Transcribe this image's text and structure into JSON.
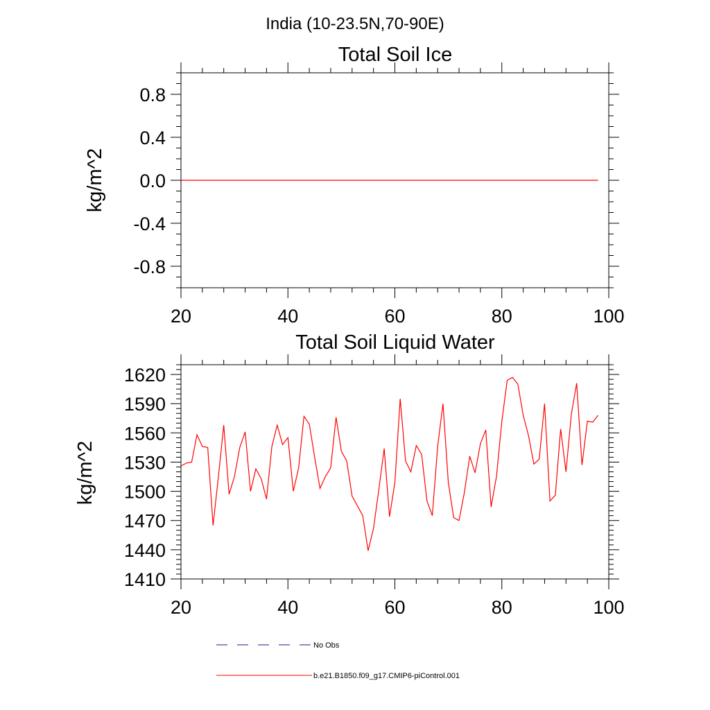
{
  "figure_title": "India (10-23.5N,70-90E)",
  "chart_data": [
    {
      "type": "line",
      "title": "Total Soil Ice",
      "xlabel": "",
      "ylabel": "kg/m^2",
      "xlim": [
        20,
        100
      ],
      "ylim": [
        -1.0,
        1.0
      ],
      "x_ticks": [
        20,
        40,
        60,
        80,
        100
      ],
      "y_ticks": [
        -0.8,
        -0.4,
        0.0,
        0.4,
        0.8
      ],
      "y_tick_labels": [
        "-0.8",
        "-0.4",
        "0.0",
        "0.4",
        "0.8"
      ],
      "series": [
        {
          "name": "b.e21.B1850.f09_g17.CMIP6-piControl.001",
          "color": "#ff0000",
          "x": [
            20,
            98
          ],
          "values": [
            0.0,
            0.0
          ]
        }
      ]
    },
    {
      "type": "line",
      "title": "Total Soil Liquid Water",
      "xlabel": "",
      "ylabel": "kg/m^2",
      "xlim": [
        20,
        100
      ],
      "ylim": [
        1410,
        1630
      ],
      "x_ticks": [
        20,
        40,
        60,
        80,
        100
      ],
      "y_ticks": [
        1410,
        1440,
        1470,
        1500,
        1530,
        1560,
        1590,
        1620
      ],
      "y_tick_labels": [
        "1410",
        "1440",
        "1470",
        "1500",
        "1530",
        "1560",
        "1590",
        "1620"
      ],
      "series": [
        {
          "name": "b.e21.B1850.f09_g17.CMIP6-piControl.001",
          "color": "#ff0000",
          "x": [
            20,
            21,
            22,
            23,
            24,
            25,
            26,
            27,
            28,
            29,
            30,
            31,
            32,
            33,
            34,
            35,
            36,
            37,
            38,
            39,
            40,
            41,
            42,
            43,
            44,
            45,
            46,
            47,
            48,
            49,
            50,
            51,
            52,
            53,
            54,
            55,
            56,
            57,
            58,
            59,
            60,
            61,
            62,
            63,
            64,
            65,
            66,
            67,
            68,
            69,
            70,
            71,
            72,
            73,
            74,
            75,
            76,
            77,
            78,
            79,
            80,
            81,
            82,
            83,
            84,
            85,
            86,
            87,
            88,
            89,
            90,
            91,
            92,
            93,
            94,
            95,
            96,
            97,
            98
          ],
          "values": [
            1526,
            1529,
            1530,
            1558,
            1546,
            1545,
            1465,
            1515,
            1568,
            1497,
            1515,
            1545,
            1561,
            1500,
            1523,
            1513,
            1492,
            1546,
            1568,
            1548,
            1555,
            1500,
            1524,
            1577,
            1569,
            1535,
            1503,
            1515,
            1524,
            1576,
            1541,
            1531,
            1495,
            1485,
            1475,
            1439,
            1462,
            1502,
            1544,
            1474,
            1509,
            1595,
            1531,
            1520,
            1547,
            1538,
            1490,
            1475,
            1546,
            1590,
            1509,
            1473,
            1470,
            1499,
            1536,
            1519,
            1549,
            1563,
            1484,
            1515,
            1572,
            1614,
            1617,
            1610,
            1578,
            1557,
            1528,
            1533,
            1590,
            1490,
            1496,
            1564,
            1520,
            1579,
            1611,
            1527,
            1572,
            1571,
            1578
          ]
        }
      ]
    }
  ],
  "legend": {
    "items": [
      {
        "label": "No Obs",
        "color": "#1a1a80",
        "style": "dashed"
      },
      {
        "label": "b.e21.B1850.f09_g17.CMIP6-piControl.001",
        "color": "#ff0000",
        "style": "solid"
      }
    ]
  }
}
